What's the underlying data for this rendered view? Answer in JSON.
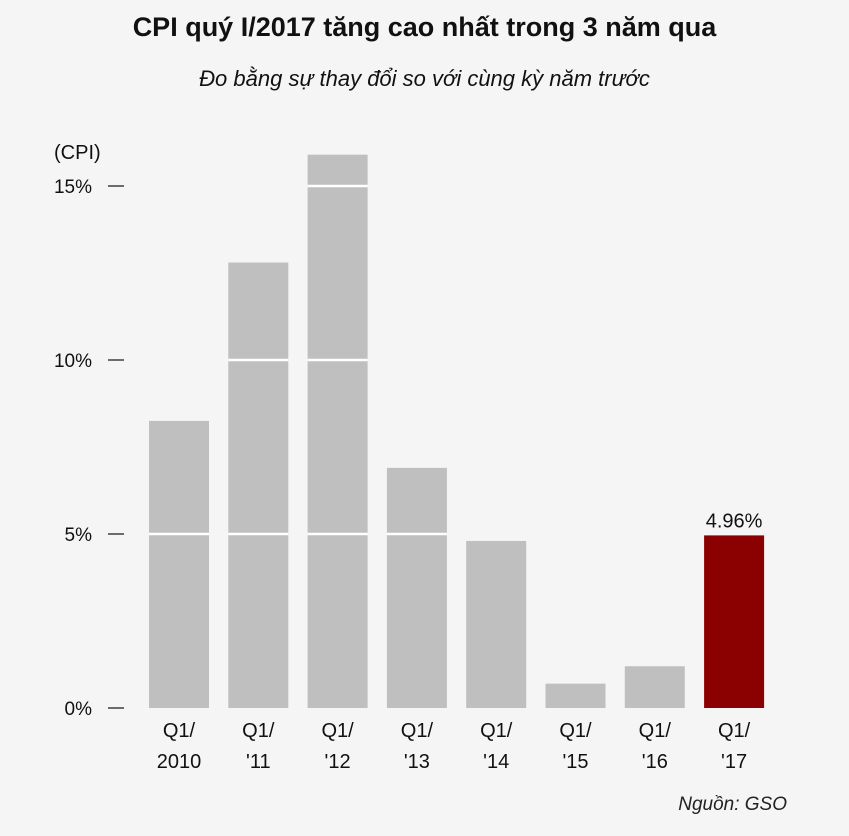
{
  "chart_data": {
    "type": "bar",
    "title": "CPI quý I/2017 tăng cao nhất trong 3 năm qua",
    "subtitle": "Đo bằng sự thay đổi so với cùng kỳ năm trước",
    "ylabel": "(CPI)",
    "ylim": [
      0,
      15.9
    ],
    "yticks": [
      0,
      5,
      10,
      15
    ],
    "ytick_labels": [
      "0%",
      "5%",
      "10%",
      "15%"
    ],
    "categories": [
      [
        "Q1/",
        "2010"
      ],
      [
        "Q1/",
        "'11"
      ],
      [
        "Q1/",
        "'12"
      ],
      [
        "Q1/",
        "'13"
      ],
      [
        "Q1/",
        "'14"
      ],
      [
        "Q1/",
        "'15"
      ],
      [
        "Q1/",
        "'16"
      ],
      [
        "Q1/",
        "'17"
      ]
    ],
    "values": [
      8.25,
      12.8,
      15.9,
      6.9,
      4.8,
      0.7,
      1.2,
      4.96
    ],
    "data_labels": [
      "",
      "",
      "",
      "",
      "",
      "",
      "",
      "4.96%"
    ],
    "grid": "white gridlines over bars",
    "colors": {
      "bar": "#bfbfbf",
      "highlight": "#8b0000",
      "highlight_index": 7
    },
    "source": "Nguồn: GSO"
  }
}
